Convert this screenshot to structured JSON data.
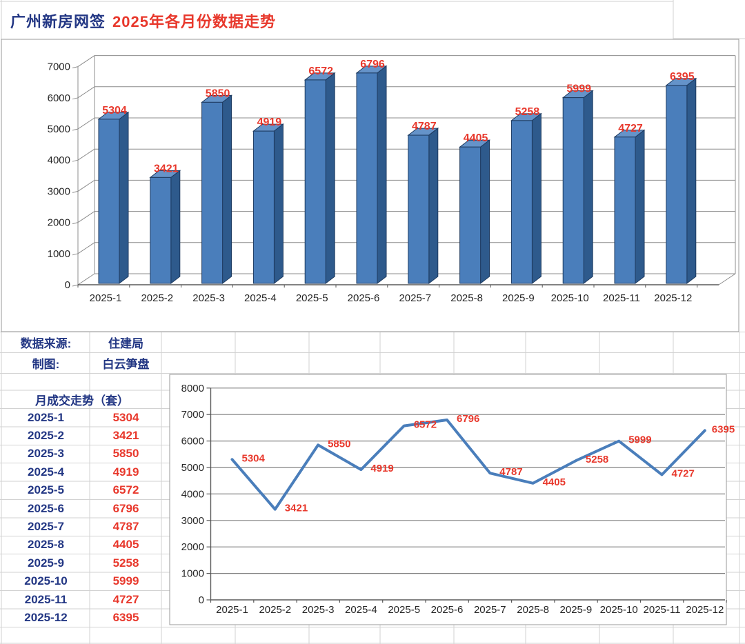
{
  "title": {
    "part1": "广州新房网签",
    "part2": "2025年各月份数据走势"
  },
  "info": {
    "source_label": "数据来源:",
    "source_value": "住建局",
    "author_label": "制图:",
    "author_value": "白云笋盘"
  },
  "table": {
    "header": "月成交走势（套）",
    "rows": [
      {
        "month": "2025-1",
        "value": "5304"
      },
      {
        "month": "2025-2",
        "value": "3421"
      },
      {
        "month": "2025-3",
        "value": "5850"
      },
      {
        "month": "2025-4",
        "value": "4919"
      },
      {
        "month": "2025-5",
        "value": "6572"
      },
      {
        "month": "2025-6",
        "value": "6796"
      },
      {
        "month": "2025-7",
        "value": "4787"
      },
      {
        "month": "2025-8",
        "value": "4405"
      },
      {
        "month": "2025-9",
        "value": "5258"
      },
      {
        "month": "2025-10",
        "value": "5999"
      },
      {
        "month": "2025-11",
        "value": "4727"
      },
      {
        "month": "2025-12",
        "value": "6395"
      }
    ]
  },
  "chart_data": [
    {
      "type": "bar",
      "style": "3d-column",
      "title": "",
      "categories": [
        "2025-1",
        "2025-2",
        "2025-3",
        "2025-4",
        "2025-5",
        "2025-6",
        "2025-7",
        "2025-8",
        "2025-9",
        "2025-10",
        "2025-11",
        "2025-12"
      ],
      "values": [
        5304,
        3421,
        5850,
        4919,
        6572,
        6796,
        4787,
        4405,
        5258,
        5999,
        4727,
        6395
      ],
      "xlabel": "",
      "ylabel": "",
      "ylim": [
        0,
        7000
      ],
      "ytick_step": 1000,
      "grid": true,
      "legend": "none",
      "bar_color": "#4a7ebb",
      "data_label_color": "#e8382c"
    },
    {
      "type": "line",
      "title": "",
      "categories": [
        "2025-1",
        "2025-2",
        "2025-3",
        "2025-4",
        "2025-5",
        "2025-6",
        "2025-7",
        "2025-8",
        "2025-9",
        "2025-10",
        "2025-11",
        "2025-12"
      ],
      "values": [
        5304,
        3421,
        5850,
        4919,
        6572,
        6796,
        4787,
        4405,
        5258,
        5999,
        4727,
        6395
      ],
      "xlabel": "",
      "ylabel": "",
      "ylim": [
        0,
        8000
      ],
      "ytick_step": 1000,
      "grid": true,
      "legend": "none",
      "line_color": "#4a7ebb",
      "data_label_color": "#e8382c"
    }
  ],
  "colors": {
    "navy_text": "#233784",
    "red_text": "#e8382c",
    "bar_front": "#4a7ebb",
    "bar_top": "#6593c9",
    "bar_side": "#2e5a8c",
    "bar_edge": "#1d3a5f",
    "chart_grid": "#8c8c8c",
    "axis": "#595959",
    "sheet_grid": "#d2d2d2",
    "chart_border": "#999999"
  }
}
